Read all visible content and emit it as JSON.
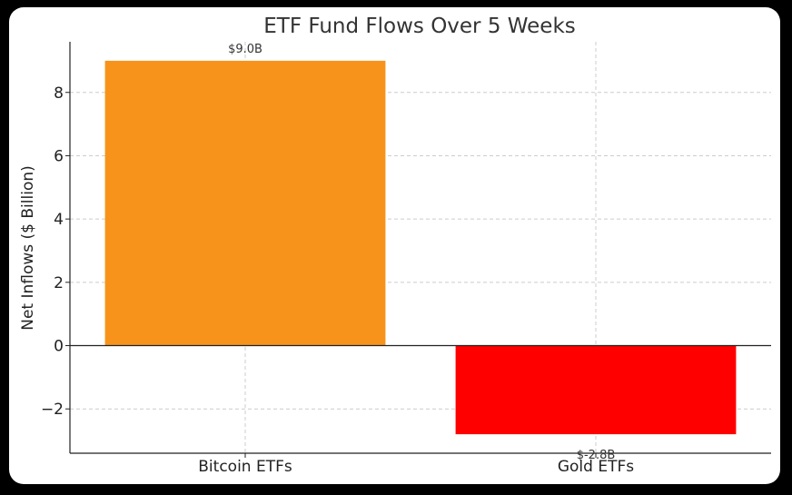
{
  "chart_data": {
    "type": "bar",
    "title": "ETF Fund Flows Over 5 Weeks",
    "xlabel": "",
    "ylabel": "Net Inflows ($ Billion)",
    "categories": [
      "Bitcoin ETFs",
      "Gold ETFs"
    ],
    "values": [
      9.0,
      -2.8
    ],
    "data_labels": [
      "$9.0B",
      "$-2.8B"
    ],
    "colors": [
      "#f7931a",
      "#ff0000"
    ],
    "ylim": [
      -3.4,
      9.6
    ],
    "yticks": [
      -2,
      0,
      2,
      4,
      6,
      8
    ],
    "ytick_labels": [
      "−2",
      "0",
      "2",
      "4",
      "6",
      "8"
    ],
    "grid": true
  }
}
